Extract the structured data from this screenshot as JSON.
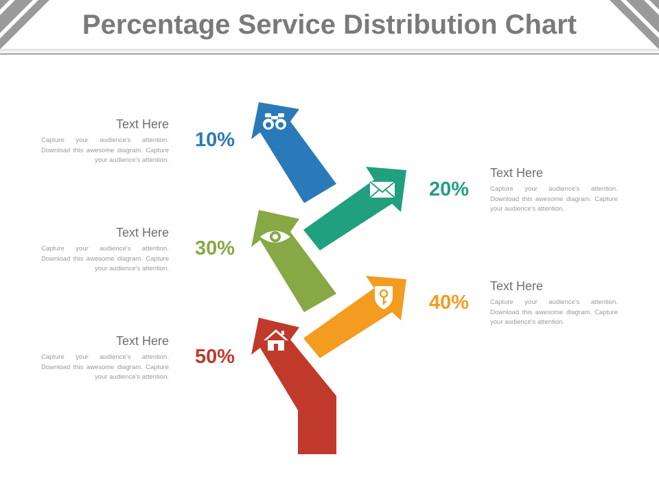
{
  "title": "Percentage Service Distribution Chart",
  "items": [
    {
      "percent": "10%",
      "heading": "Text Here",
      "text": "Capture your audience's attention. Download this awesome diagram. Capture your audience's attention.",
      "color": "#2a7ab9",
      "icon": "binoculars-icon",
      "side": "left"
    },
    {
      "percent": "20%",
      "heading": "Text Here",
      "text": "Capture your audience's attention. Download this awesome diagram. Capture your audience's attention.",
      "color": "#21a080",
      "icon": "envelope-icon",
      "side": "right"
    },
    {
      "percent": "30%",
      "heading": "Text Here",
      "text": "Capture your audience's attention. Download this awesome diagram. Capture your audience's attention.",
      "color": "#87a844",
      "icon": "eye-icon",
      "side": "left"
    },
    {
      "percent": "40%",
      "heading": "Text Here",
      "text": "Capture your audience's attention. Download this awesome diagram. Capture your audience's attention.",
      "color": "#f39c1f",
      "icon": "shield-key-icon",
      "side": "right"
    },
    {
      "percent": "50%",
      "heading": "Text Here",
      "text": "Capture your audience's attention. Download this awesome diagram. Capture your audience's attention.",
      "color": "#c0392b",
      "icon": "house-icon",
      "side": "left"
    }
  ]
}
